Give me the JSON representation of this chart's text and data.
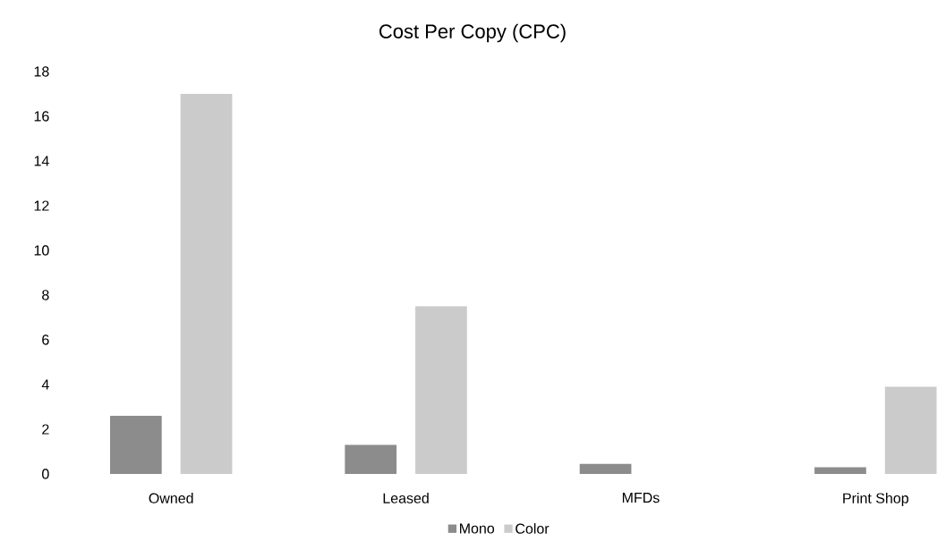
{
  "chart_data": {
    "type": "bar",
    "title": "Cost Per Copy (CPC)",
    "categories": [
      "Owned",
      "Leased",
      "MFDs",
      "Print Shop"
    ],
    "series": [
      {
        "name": "Mono",
        "color": "#8c8c8c",
        "values": [
          2.6,
          1.3,
          0.45,
          0.3
        ]
      },
      {
        "name": "Color",
        "color": "#cbcbcb",
        "values": [
          17,
          7.5,
          0,
          3.9
        ]
      }
    ],
    "ylim": [
      0,
      18
    ],
    "yticks": [
      0,
      2,
      4,
      6,
      8,
      10,
      12,
      14,
      16,
      18
    ],
    "grid": false,
    "legend": "bottom"
  }
}
